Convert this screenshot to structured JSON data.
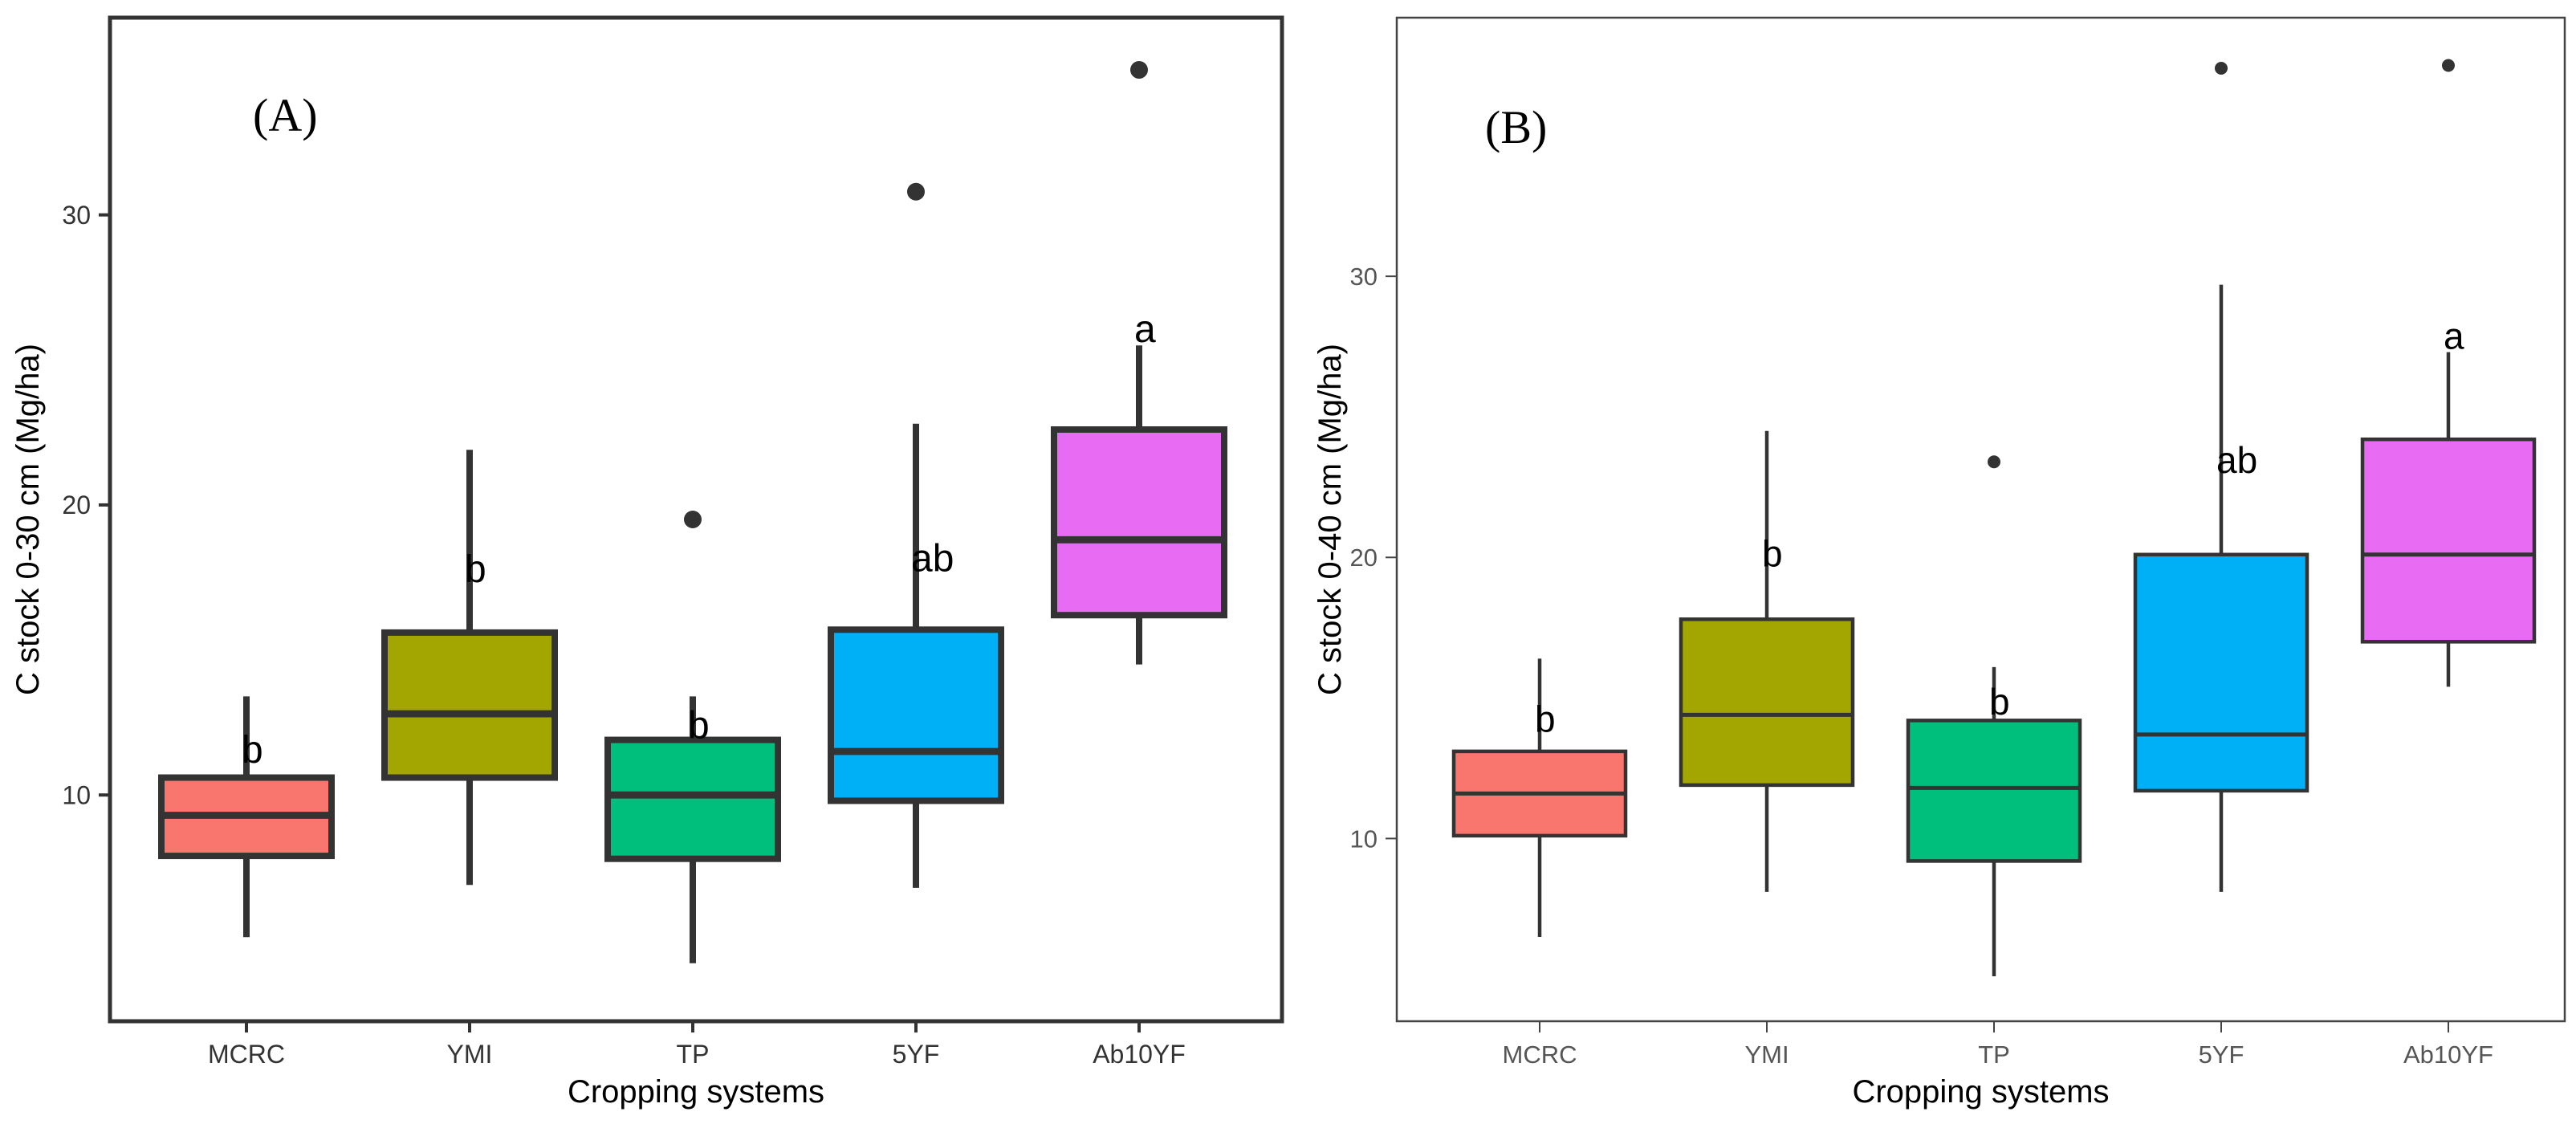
{
  "chart_data": [
    {
      "type": "box",
      "panel_label": "(A)",
      "xlabel": "Cropping systems",
      "ylabel": "C stock 0-30 cm (Mg/ha)",
      "categories": [
        "MCRC",
        "YMI",
        "TP",
        "5YF",
        "Ab10YF"
      ],
      "colors": [
        "#f8766d",
        "#a3a500",
        "#00bf7d",
        "#00b0f6",
        "#e76bf3"
      ],
      "ylim": [
        2.2,
        36.8
      ],
      "yticks": [
        10,
        20,
        30
      ],
      "ytick_labels": [
        "10",
        "20",
        "30"
      ],
      "grid": false,
      "boxes": [
        {
          "category": "MCRC",
          "whisker_low": 5.1,
          "q1": 7.9,
          "median": 9.3,
          "q3": 10.6,
          "whisker_high": 13.4,
          "outliers": [],
          "letter": "b"
        },
        {
          "category": "YMI",
          "whisker_low": 6.9,
          "q1": 10.6,
          "median": 12.8,
          "q3": 15.6,
          "whisker_high": 21.9,
          "outliers": [],
          "letter": "b"
        },
        {
          "category": "TP",
          "whisker_low": 4.2,
          "q1": 7.8,
          "median": 10.0,
          "q3": 11.9,
          "whisker_high": 13.4,
          "outliers": [
            19.5
          ],
          "letter": "b"
        },
        {
          "category": "5YF",
          "whisker_low": 6.8,
          "q1": 9.8,
          "median": 11.5,
          "q3": 15.7,
          "whisker_high": 22.8,
          "outliers": [
            30.8
          ],
          "letter": "ab"
        },
        {
          "category": "Ab10YF",
          "whisker_low": 14.5,
          "q1": 16.2,
          "median": 18.8,
          "q3": 22.6,
          "whisker_high": 25.5,
          "outliers": [
            35.0
          ],
          "letter": "a"
        }
      ]
    },
    {
      "type": "box",
      "panel_label": "(B)",
      "xlabel": "Cropping systems",
      "ylabel": "C stock 0-40 cm (Mg/ha)",
      "categories": [
        "MCRC",
        "YMI",
        "TP",
        "5YF",
        "Ab10YF"
      ],
      "colors": [
        "#f8766d",
        "#a3a500",
        "#00bf7d",
        "#00b0f6",
        "#e76bf3"
      ],
      "ylim": [
        3.5,
        39.2
      ],
      "yticks": [
        10,
        20,
        30
      ],
      "ytick_labels": [
        "10",
        "20",
        "30"
      ],
      "grid": false,
      "boxes": [
        {
          "category": "MCRC",
          "whisker_low": 6.5,
          "q1": 10.1,
          "median": 11.6,
          "q3": 13.1,
          "whisker_high": 16.4,
          "outliers": [],
          "letter": "b"
        },
        {
          "category": "YMI",
          "whisker_low": 8.1,
          "q1": 11.9,
          "median": 14.4,
          "q3": 17.8,
          "whisker_high": 24.5,
          "outliers": [],
          "letter": "b"
        },
        {
          "category": "TP",
          "whisker_low": 5.1,
          "q1": 9.2,
          "median": 11.8,
          "q3": 14.2,
          "whisker_high": 16.1,
          "outliers": [
            23.4
          ],
          "letter": "b"
        },
        {
          "category": "5YF",
          "whisker_low": 8.1,
          "q1": 11.7,
          "median": 13.7,
          "q3": 20.1,
          "whisker_high": 29.7,
          "outliers": [
            37.4
          ],
          "letter": "ab"
        },
        {
          "category": "Ab10YF",
          "whisker_low": 15.4,
          "q1": 17.0,
          "median": 20.1,
          "q3": 24.2,
          "whisker_high": 27.3,
          "outliers": [
            37.5
          ],
          "letter": "a"
        }
      ]
    }
  ]
}
